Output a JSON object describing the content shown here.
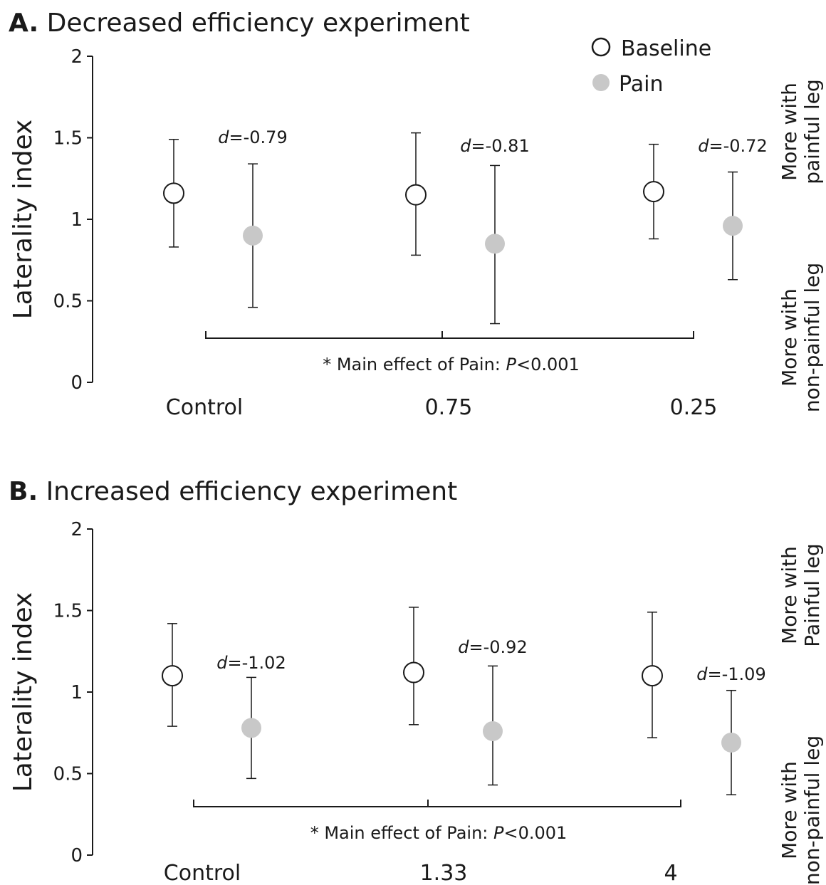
{
  "legend": {
    "items": [
      {
        "label": "Baseline",
        "marker": "open-circle",
        "color": "#ffffff"
      },
      {
        "label": "Pain",
        "marker": "filled-circle",
        "color": "#c8c8c8"
      }
    ]
  },
  "colors": {
    "baseline_fill": "#ffffff",
    "pain_fill": "#c8c8c8",
    "ink": "#1a1a1a"
  },
  "chart_data": [
    {
      "type": "scatter",
      "panel_letter": "A.",
      "title": "Decreased efficiency experiment",
      "ylabel": "Laterality index",
      "ylim": [
        0,
        2
      ],
      "yticks": [
        "0",
        "0.5",
        "1",
        "1.5",
        "2"
      ],
      "categories": [
        "Control",
        "0.75",
        "0.25"
      ],
      "side_top": [
        "More with",
        "painful leg"
      ],
      "side_bottom": [
        "More with",
        "non-painful leg"
      ],
      "effect_text": {
        "prefix": "* Main effect of Pain: ",
        "italic": "P",
        "suffix": "<0.001"
      },
      "series": [
        {
          "name": "Baseline",
          "values": [
            1.16,
            1.15,
            1.17
          ],
          "err_low": [
            0.83,
            0.78,
            0.88
          ],
          "err_high": [
            1.49,
            1.53,
            1.46
          ]
        },
        {
          "name": "Pain",
          "values": [
            0.9,
            0.85,
            0.96
          ],
          "err_low": [
            0.46,
            0.36,
            0.63
          ],
          "err_high": [
            1.34,
            1.33,
            1.29
          ]
        }
      ],
      "d_labels": [
        {
          "italic": "d",
          "text": "=-0.79"
        },
        {
          "italic": "d",
          "text": "=-0.81"
        },
        {
          "italic": "d",
          "text": "=-0.72"
        }
      ]
    },
    {
      "type": "scatter",
      "panel_letter": "B.",
      "title": "Increased efficiency experiment",
      "ylabel": "Laterality index",
      "ylim": [
        0,
        2
      ],
      "yticks": [
        "0",
        "0.5",
        "1",
        "1.5",
        "2"
      ],
      "categories": [
        "Control",
        "1.33",
        "4"
      ],
      "side_top": [
        "More with",
        "Painful leg"
      ],
      "side_bottom": [
        "More with",
        "non-painful leg"
      ],
      "effect_text": {
        "prefix": "* Main effect of Pain: ",
        "italic": "P",
        "suffix": "<0.001"
      },
      "series": [
        {
          "name": "Baseline",
          "values": [
            1.1,
            1.12,
            1.1
          ],
          "err_low": [
            0.79,
            0.8,
            0.72
          ],
          "err_high": [
            1.42,
            1.52,
            1.49
          ]
        },
        {
          "name": "Pain",
          "values": [
            0.78,
            0.76,
            0.69
          ],
          "err_low": [
            0.47,
            0.43,
            0.37
          ],
          "err_high": [
            1.09,
            1.16,
            1.01
          ]
        }
      ],
      "d_labels": [
        {
          "italic": "d",
          "text": "=-1.02"
        },
        {
          "italic": "d",
          "text": "=-0.92"
        },
        {
          "italic": "d",
          "text": "=-1.09"
        }
      ]
    }
  ]
}
